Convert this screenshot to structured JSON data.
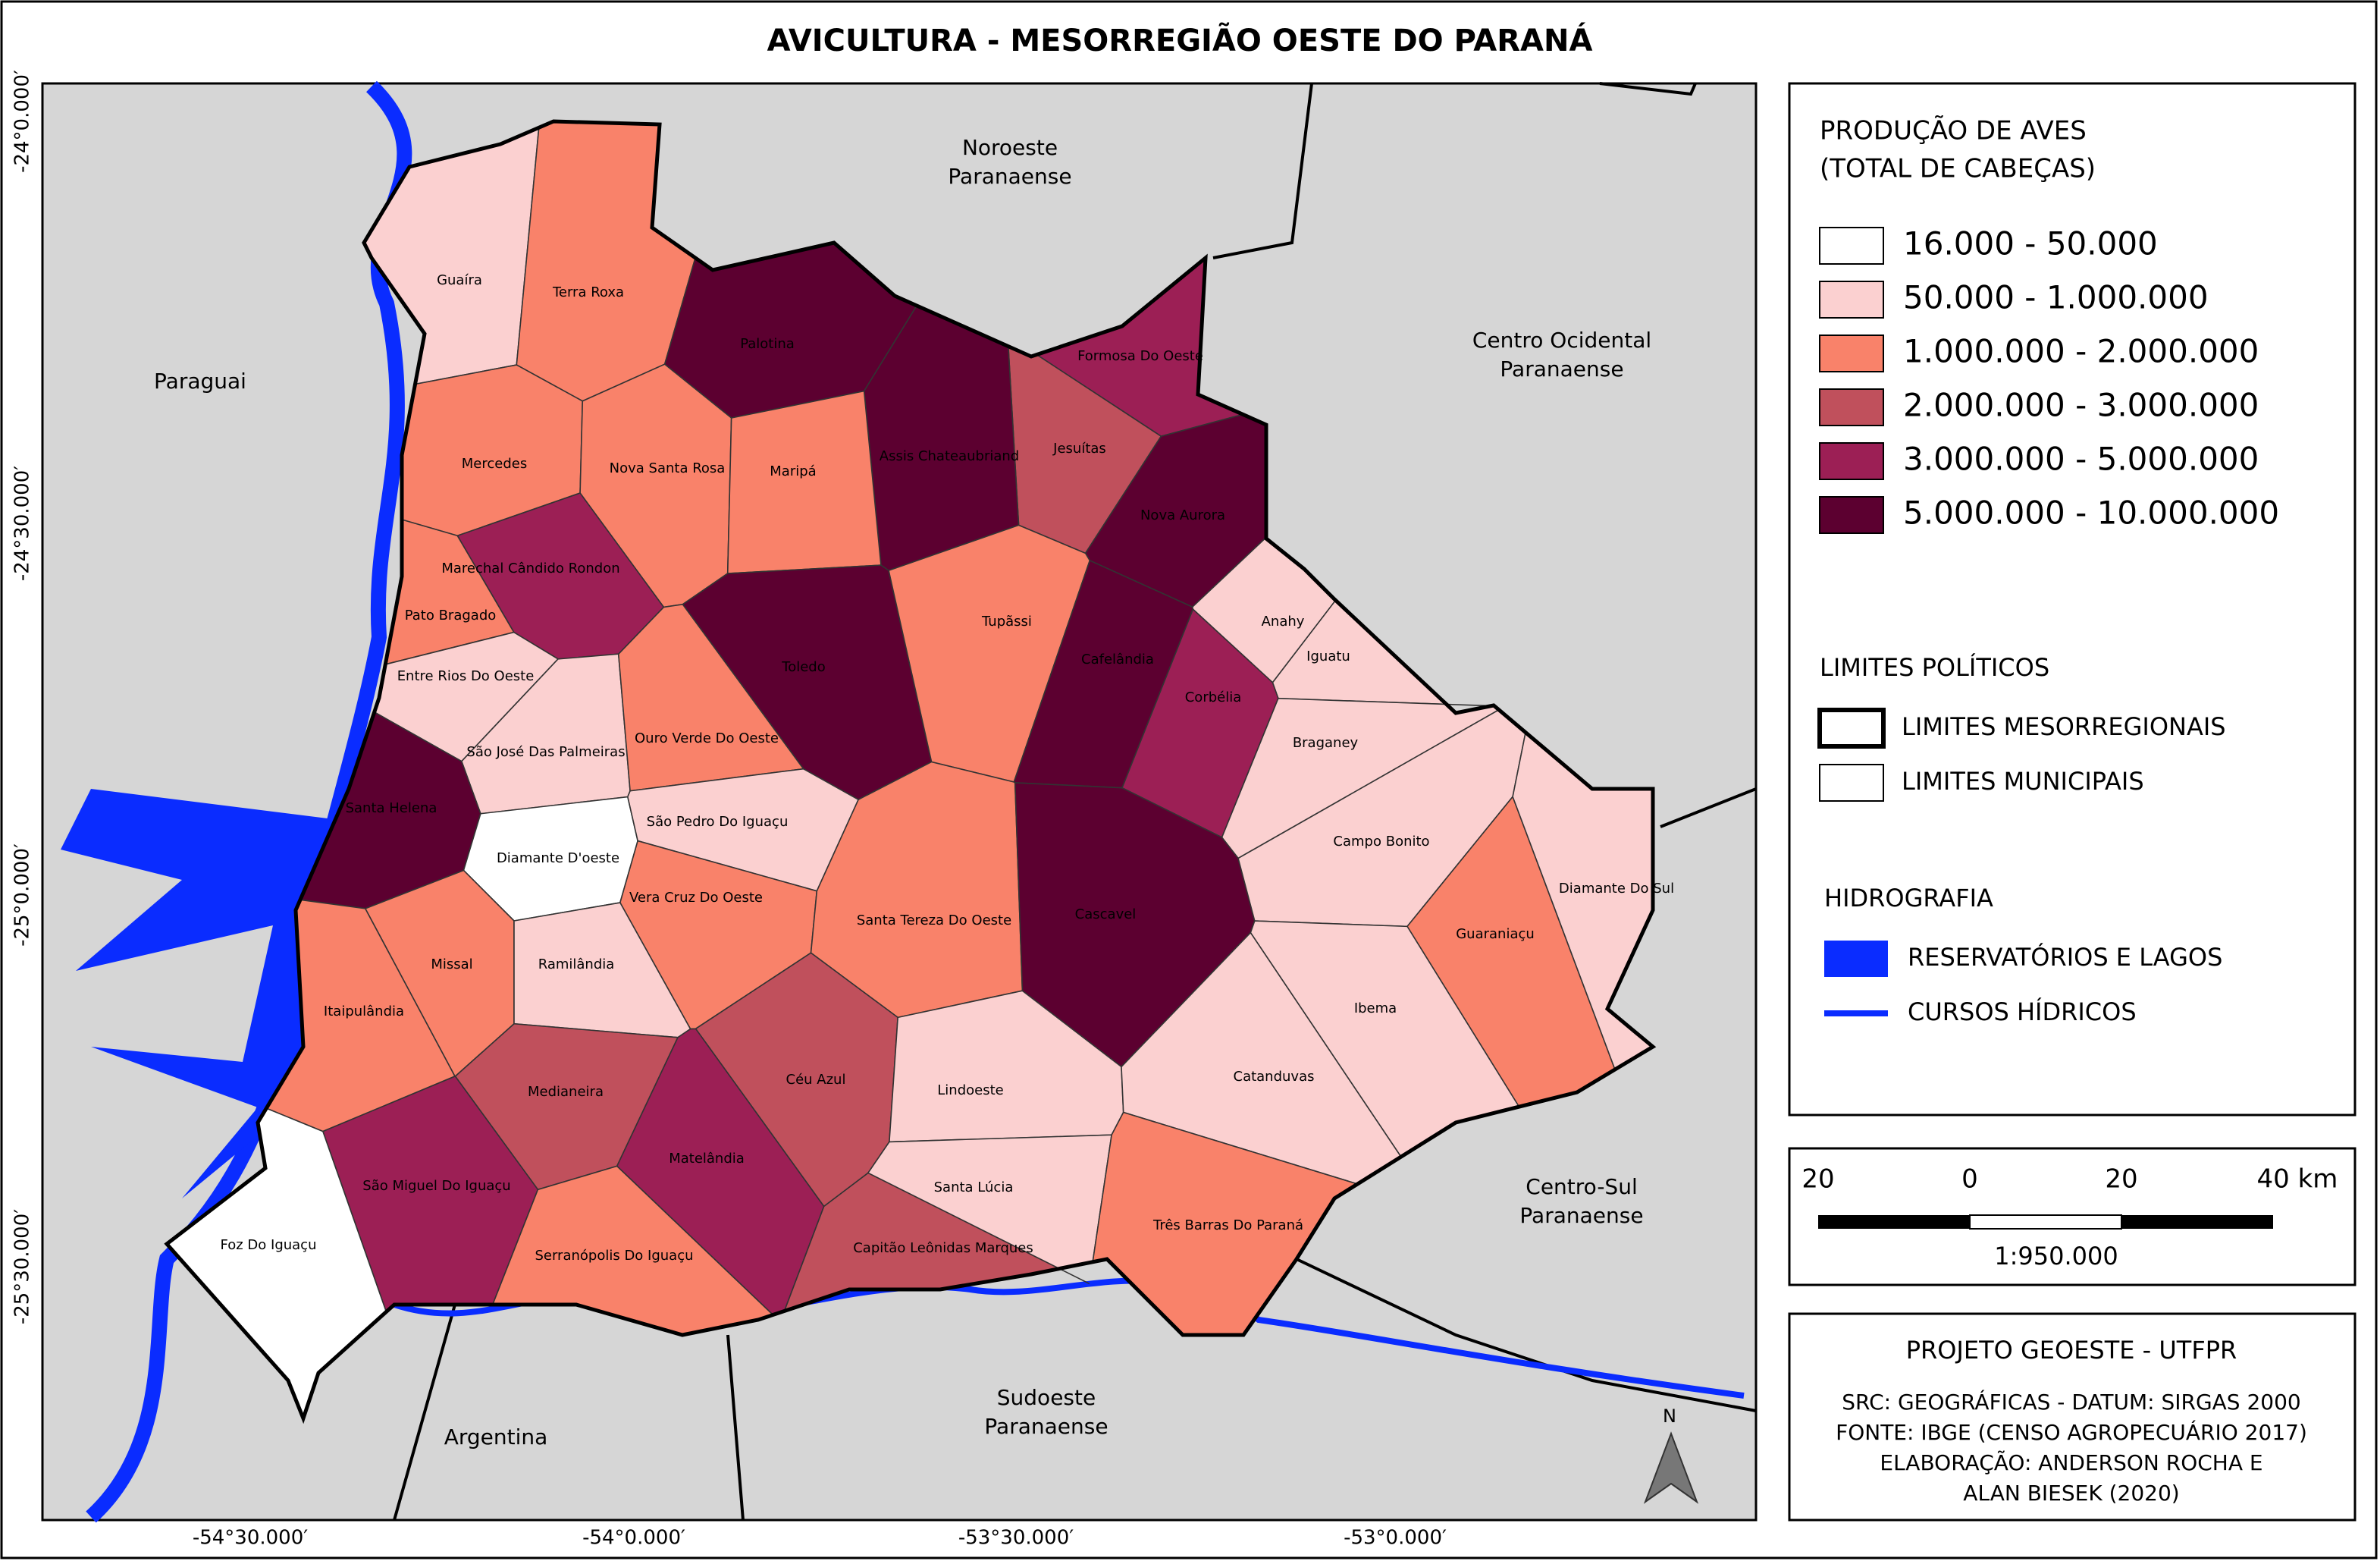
{
  "title": "AVICULTURA - MESORREGIÃO OESTE DO PARANÁ",
  "map": {
    "regions": [
      [
        "Noroeste",
        "Paranaense"
      ],
      [
        "Centro Ocidental",
        "Paranaense"
      ],
      [
        "Paraguai"
      ],
      [
        "Centro-Sul",
        "Paranaense"
      ],
      [
        "Sudoeste",
        "Paranaense"
      ],
      [
        "Argentina"
      ]
    ],
    "municipalities": [
      {
        "name": "Guaíra",
        "color": "#fbd0d0"
      },
      {
        "name": "Terra Roxa",
        "color": "#f9826a"
      },
      {
        "name": "Palotina",
        "color": "#5c0030"
      },
      {
        "name": "Formosa Do Oeste",
        "color": "#9c1f55"
      },
      {
        "name": "Jesuítas",
        "color": "#c0505c"
      },
      {
        "name": "Nova Aurora",
        "color": "#5c0030"
      },
      {
        "name": "Assis Chateaubriand",
        "color": "#5c0030"
      },
      {
        "name": "Mercedes",
        "color": "#f9826a"
      },
      {
        "name": "Nova Santa Rosa",
        "color": "#f9826a"
      },
      {
        "name": "Maripá",
        "color": "#f9826a"
      },
      {
        "name": "Marechal Cândido Rondon",
        "color": "#9c1f55"
      },
      {
        "name": "Pato Bragado",
        "color": "#f9826a"
      },
      {
        "name": "Entre Rios Do Oeste",
        "color": "#fbd0d0"
      },
      {
        "name": "Toledo",
        "color": "#5c0030"
      },
      {
        "name": "Tupãssi",
        "color": "#f9826a"
      },
      {
        "name": "Cafelândia",
        "color": "#5c0030"
      },
      {
        "name": "Anahy",
        "color": "#fbd0d0"
      },
      {
        "name": "Iguatu",
        "color": "#fbd0d0"
      },
      {
        "name": "Corbélia",
        "color": "#9c1f55"
      },
      {
        "name": "Braganey",
        "color": "#fbd0d0"
      },
      {
        "name": "São José Das Palmeiras",
        "color": "#fbd0d0"
      },
      {
        "name": "Ouro Verde Do Oeste",
        "color": "#f9826a"
      },
      {
        "name": "Santa Helena",
        "color": "#5c0030"
      },
      {
        "name": "Diamante D'oeste",
        "color": "#ffffff"
      },
      {
        "name": "São Pedro Do Iguaçu",
        "color": "#fbd0d0"
      },
      {
        "name": "Vera Cruz Do Oeste",
        "color": "#f9826a"
      },
      {
        "name": "Santa Tereza Do Oeste",
        "color": "#f9826a"
      },
      {
        "name": "Cascavel",
        "color": "#5c0030"
      },
      {
        "name": "Campo Bonito",
        "color": "#fbd0d0"
      },
      {
        "name": "Guaraniaçu",
        "color": "#f9826a"
      },
      {
        "name": "Diamante Do Sul",
        "color": "#fbd0d0"
      },
      {
        "name": "Ibema",
        "color": "#fbd0d0"
      },
      {
        "name": "Missal",
        "color": "#f9826a"
      },
      {
        "name": "Ramilândia",
        "color": "#fbd0d0"
      },
      {
        "name": "Itaipulândia",
        "color": "#f9826a"
      },
      {
        "name": "Medianeira",
        "color": "#c0505c"
      },
      {
        "name": "Céu Azul",
        "color": "#c0505c"
      },
      {
        "name": "Lindoeste",
        "color": "#fbd0d0"
      },
      {
        "name": "Catanduvas",
        "color": "#fbd0d0"
      },
      {
        "name": "Matelândia",
        "color": "#9c1f55"
      },
      {
        "name": "São Miguel Do Iguaçu",
        "color": "#9c1f55"
      },
      {
        "name": "Santa Lúcia",
        "color": "#fbd0d0"
      },
      {
        "name": "Três Barras Do Paraná",
        "color": "#f9826a"
      },
      {
        "name": "Capitão Leônidas Marques",
        "color": "#c0505c"
      },
      {
        "name": "Serranópolis Do Iguaçu",
        "color": "#f9826a"
      },
      {
        "name": "Foz Do Iguaçu",
        "color": "#ffffff"
      }
    ],
    "latitude_labels": [
      "-24°0.000′",
      "-24°30.000′",
      "-25°0.000′",
      "-25°30.000′"
    ],
    "longitude_labels": [
      "-54°30.000′",
      "-54°0.000′",
      "-53°30.000′",
      "-53°0.000′"
    ],
    "north": "N"
  },
  "legend": {
    "title": [
      "PRODUÇÃO DE AVES",
      "(TOTAL DE CABEÇAS)"
    ],
    "classes": [
      {
        "label": "16.000 - 50.000",
        "color": "#ffffff"
      },
      {
        "label": "50.000 - 1.000.000",
        "color": "#fbd0d0"
      },
      {
        "label": "1.000.000 - 2.000.000",
        "color": "#f9826a"
      },
      {
        "label": "2.000.000 - 3.000.000",
        "color": "#c0505c"
      },
      {
        "label": "3.000.000 - 5.000.000",
        "color": "#9c1f55"
      },
      {
        "label": "5.000.000 - 10.000.000",
        "color": "#5c0030"
      }
    ],
    "political_title": "LIMITES POLÍTICOS",
    "political": [
      "LIMITES MESORREGIONAIS",
      "LIMITES MUNICIPAIS"
    ],
    "hydro_title": "HIDROGRAFIA",
    "hydro": [
      "RESERVATÓRIOS E LAGOS",
      "CURSOS HÍDRICOS"
    ]
  },
  "scale": {
    "ticks": [
      "20",
      "0",
      "20",
      "40 km"
    ],
    "ratio": "1:950.000"
  },
  "credits": {
    "title": "PROJETO GEOESTE - UTFPR",
    "lines": [
      "SRC: GEOGRÁFICAS - DATUM: SIRGAS 2000",
      "FONTE: IBGE (CENSO AGROPECUÁRIO 2017)",
      "ELABORAÇÃO: ANDERSON ROCHA E",
      "ALAN BIESEK (2020)"
    ]
  }
}
